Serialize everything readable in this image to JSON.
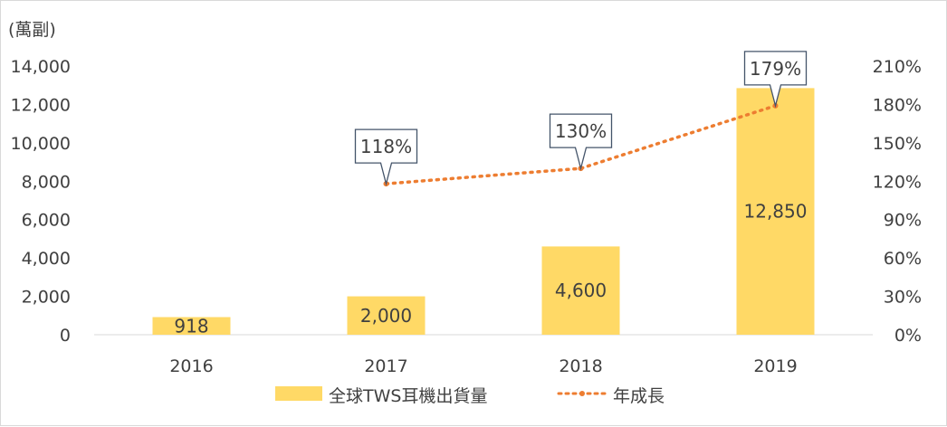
{
  "chart_data": {
    "type": "bar",
    "categories": [
      "2016",
      "2017",
      "2018",
      "2019"
    ],
    "y_unit_label": "(萬副)",
    "ylim": [
      0,
      14000
    ],
    "y_ticks": [
      "0",
      "2,000",
      "4,000",
      "6,000",
      "8,000",
      "10,000",
      "12,000",
      "14,000"
    ],
    "y2lim": [
      0,
      2.1
    ],
    "y2_ticks": [
      "0%",
      "30%",
      "60%",
      "90%",
      "120%",
      "150%",
      "180%",
      "210%"
    ],
    "grid": false,
    "legend_position": "bottom",
    "colors": {
      "bar": "#ffd966",
      "line": "#ed7d31",
      "text": "#404040",
      "callout_border": "#44546a"
    },
    "series": [
      {
        "name": "全球TWS耳機出貨量",
        "type": "bar",
        "axis": "left",
        "values": [
          918,
          2000,
          4600,
          12850
        ],
        "labels": [
          "918",
          "2,000",
          "4,600",
          "12,850"
        ]
      },
      {
        "name": "年成長",
        "type": "line",
        "style": "dotted",
        "axis": "right",
        "values": [
          null,
          1.18,
          1.3,
          1.79
        ],
        "labels": [
          "",
          "118%",
          "130%",
          "179%"
        ]
      }
    ]
  }
}
